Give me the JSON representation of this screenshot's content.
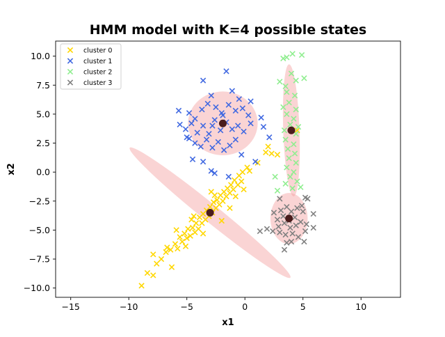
{
  "chart_data": {
    "type": "scatter",
    "title": "HMM model with K=4 possible states",
    "xlabel": "x1",
    "ylabel": "x2",
    "xlim": [
      -16.3,
      13.4
    ],
    "ylim": [
      -10.8,
      11.3
    ],
    "xticks": [
      -15,
      -10,
      -5,
      0,
      5,
      10
    ],
    "yticks": [
      -10.0,
      -7.5,
      -5.0,
      -2.5,
      0.0,
      2.5,
      5.0,
      7.5,
      10.0
    ],
    "xtick_labels": [
      "−15",
      "−10",
      "−5",
      "0",
      "5",
      "10"
    ],
    "ytick_labels": [
      "−10.0",
      "−7.5",
      "−5.0",
      "−2.5",
      "0.0",
      "2.5",
      "5.0",
      "7.5",
      "10.0"
    ],
    "legend_position": "top-left",
    "marker": "x",
    "series": [
      {
        "name": "cluster 0",
        "color": "#ffd700",
        "points": [
          [
            -8.9,
            -9.8
          ],
          [
            -8.4,
            -8.7
          ],
          [
            -7.9,
            -8.9
          ],
          [
            -7.6,
            -7.9
          ],
          [
            -7.9,
            -7.1
          ],
          [
            -7.2,
            -7.5
          ],
          [
            -6.7,
            -6.5
          ],
          [
            -6.3,
            -8.2
          ],
          [
            -6.4,
            -6.7
          ],
          [
            -6.0,
            -6.2
          ],
          [
            -5.8,
            -6.6
          ],
          [
            -5.6,
            -5.6
          ],
          [
            -5.4,
            -6.0
          ],
          [
            -5.2,
            -5.3
          ],
          [
            -5.0,
            -5.7
          ],
          [
            -4.9,
            -4.9
          ],
          [
            -4.7,
            -5.5
          ],
          [
            -4.5,
            -4.8
          ],
          [
            -4.3,
            -5.2
          ],
          [
            -4.2,
            -4.4
          ],
          [
            -4.0,
            -4.9
          ],
          [
            -3.9,
            -3.9
          ],
          [
            -3.7,
            -4.4
          ],
          [
            -3.6,
            -3.6
          ],
          [
            -3.4,
            -4.1
          ],
          [
            -3.3,
            -3.3
          ],
          [
            -3.1,
            -3.8
          ],
          [
            -3.0,
            -3.0
          ],
          [
            -2.8,
            -3.5
          ],
          [
            -2.7,
            -2.6
          ],
          [
            -2.5,
            -3.1
          ],
          [
            -2.4,
            -2.4
          ],
          [
            -2.2,
            -2.8
          ],
          [
            -2.1,
            -2.0
          ],
          [
            -1.9,
            -2.5
          ],
          [
            -1.8,
            -1.7
          ],
          [
            -1.6,
            -2.1
          ],
          [
            -1.5,
            -1.4
          ],
          [
            -1.3,
            -1.8
          ],
          [
            -1.2,
            -1.1
          ],
          [
            -1.0,
            -1.5
          ],
          [
            -0.9,
            -0.7
          ],
          [
            -0.6,
            -1.1
          ],
          [
            -0.5,
            -0.3
          ],
          [
            -0.3,
            -0.8
          ],
          [
            -0.2,
            0.0
          ],
          [
            0.2,
            0.4
          ],
          [
            0.4,
            0.1
          ],
          [
            -2.9,
            -1.7
          ],
          [
            -4.4,
            -3.8
          ],
          [
            -5.9,
            -5.0
          ],
          [
            -3.6,
            -5.3
          ],
          [
            -2.0,
            -4.2
          ],
          [
            -1.3,
            -3.1
          ],
          [
            -0.8,
            -2.1
          ],
          [
            -0.1,
            -1.5
          ],
          [
            -6.8,
            -6.9
          ],
          [
            -5.1,
            -6.4
          ],
          [
            -4.6,
            -4.1
          ],
          [
            -2.6,
            -2.0
          ],
          [
            2.0,
            2.2
          ],
          [
            2.3,
            1.6
          ],
          [
            2.8,
            1.5
          ],
          [
            1.8,
            1.7
          ],
          [
            1.1,
            0.8
          ],
          [
            4.5,
            3.6
          ]
        ]
      },
      {
        "name": "cluster 1",
        "color": "#4169e1",
        "points": [
          [
            -3.6,
            7.9
          ],
          [
            -1.6,
            8.7
          ],
          [
            -2.9,
            6.6
          ],
          [
            -1.1,
            7.0
          ],
          [
            -0.5,
            6.3
          ],
          [
            0.5,
            6.1
          ],
          [
            -5.7,
            5.3
          ],
          [
            -4.8,
            5.1
          ],
          [
            -4.3,
            4.6
          ],
          [
            -3.7,
            5.4
          ],
          [
            -3.2,
            5.9
          ],
          [
            -2.5,
            5.6
          ],
          [
            -2.0,
            5.1
          ],
          [
            -1.4,
            5.8
          ],
          [
            -0.8,
            5.3
          ],
          [
            -0.2,
            5.5
          ],
          [
            0.3,
            4.9
          ],
          [
            -5.6,
            4.1
          ],
          [
            -5.1,
            3.7
          ],
          [
            -4.6,
            4.2
          ],
          [
            -4.1,
            3.4
          ],
          [
            -3.6,
            4.0
          ],
          [
            -3.1,
            3.3
          ],
          [
            -2.6,
            4.5
          ],
          [
            -2.1,
            3.6
          ],
          [
            -1.6,
            4.3
          ],
          [
            -1.1,
            3.7
          ],
          [
            -0.6,
            4.0
          ],
          [
            -0.1,
            3.5
          ],
          [
            0.5,
            4.2
          ],
          [
            -4.8,
            2.9
          ],
          [
            -4.3,
            2.5
          ],
          [
            -3.8,
            2.2
          ],
          [
            -3.3,
            2.8
          ],
          [
            -2.8,
            2.1
          ],
          [
            -2.3,
            2.6
          ],
          [
            -1.8,
            1.9
          ],
          [
            -1.3,
            2.3
          ],
          [
            -0.8,
            2.8
          ],
          [
            -0.3,
            1.5
          ],
          [
            -4.5,
            1.1
          ],
          [
            -3.6,
            0.9
          ],
          [
            -2.9,
            0.1
          ],
          [
            -2.6,
            -0.1
          ],
          [
            -1.4,
            -0.4
          ],
          [
            1.4,
            4.7
          ],
          [
            1.6,
            3.9
          ],
          [
            2.1,
            3.0
          ],
          [
            0.9,
            0.9
          ],
          [
            -5.0,
            3.0
          ],
          [
            -1.9,
            4.9
          ],
          [
            -2.8,
            4.0
          ]
        ]
      },
      {
        "name": "cluster 2",
        "color": "#90ee90",
        "points": [
          [
            3.3,
            9.8
          ],
          [
            3.6,
            9.9
          ],
          [
            4.1,
            10.2
          ],
          [
            4.9,
            10.1
          ],
          [
            3.0,
            7.8
          ],
          [
            3.5,
            7.4
          ],
          [
            4.0,
            8.5
          ],
          [
            4.4,
            7.9
          ],
          [
            5.1,
            8.1
          ],
          [
            3.6,
            6.9
          ],
          [
            4.3,
            6.6
          ],
          [
            3.8,
            6.0
          ],
          [
            4.4,
            5.4
          ],
          [
            3.6,
            5.0
          ],
          [
            4.2,
            4.6
          ],
          [
            3.9,
            4.1
          ],
          [
            3.4,
            3.6
          ],
          [
            4.4,
            3.3
          ],
          [
            3.5,
            2.8
          ],
          [
            4.2,
            2.4
          ],
          [
            3.7,
            2.0
          ],
          [
            4.3,
            1.6
          ],
          [
            3.8,
            1.2
          ],
          [
            4.4,
            0.8
          ],
          [
            3.6,
            0.4
          ],
          [
            4.2,
            0.0
          ],
          [
            3.9,
            -0.4
          ],
          [
            4.5,
            -0.8
          ],
          [
            3.5,
            -1.0
          ],
          [
            4.1,
            -1.4
          ],
          [
            4.8,
            -1.3
          ],
          [
            2.6,
            -0.4
          ],
          [
            2.8,
            -1.6
          ],
          [
            4.6,
            3.9
          ],
          [
            3.3,
            5.6
          ]
        ]
      },
      {
        "name": "cluster 3",
        "color": "#808080",
        "points": [
          [
            3.0,
            -2.3
          ],
          [
            5.2,
            -2.2
          ],
          [
            5.4,
            -2.3
          ],
          [
            4.9,
            -2.9
          ],
          [
            5.9,
            -3.6
          ],
          [
            2.5,
            -3.5
          ],
          [
            3.1,
            -3.3
          ],
          [
            3.6,
            -3.0
          ],
          [
            4.0,
            -3.4
          ],
          [
            4.5,
            -3.1
          ],
          [
            5.0,
            -3.4
          ],
          [
            2.8,
            -4.1
          ],
          [
            3.3,
            -3.8
          ],
          [
            3.8,
            -4.2
          ],
          [
            4.3,
            -3.9
          ],
          [
            4.8,
            -4.3
          ],
          [
            2.9,
            -4.7
          ],
          [
            3.4,
            -4.4
          ],
          [
            3.9,
            -4.8
          ],
          [
            4.4,
            -4.6
          ],
          [
            5.3,
            -4.5
          ],
          [
            5.9,
            -4.8
          ],
          [
            1.9,
            -4.9
          ],
          [
            2.4,
            -5.1
          ],
          [
            3.0,
            -5.2
          ],
          [
            3.5,
            -5.4
          ],
          [
            4.1,
            -5.3
          ],
          [
            4.6,
            -5.6
          ],
          [
            5.2,
            -5.1
          ],
          [
            5.1,
            -6.0
          ],
          [
            4.0,
            -6.0
          ],
          [
            3.6,
            -6.1
          ],
          [
            3.4,
            -6.7
          ],
          [
            1.3,
            -5.1
          ]
        ]
      }
    ],
    "states": [
      {
        "mean": [
          -1.9,
          4.2
        ],
        "shape": "circle",
        "rx": 3.0,
        "ry": 2.75,
        "angle": 0
      },
      {
        "mean": [
          -3.0,
          -3.5
        ],
        "shape": "elongated",
        "rx": 8.9,
        "ry": 0.75,
        "angle": 39
      },
      {
        "mean": [
          4.0,
          3.6
        ],
        "shape": "elongated",
        "rx": 5.7,
        "ry": 0.7,
        "angle": 88
      },
      {
        "mean": [
          3.8,
          -4.0
        ],
        "shape": "circle",
        "rx": 1.6,
        "ry": 2.2,
        "angle": 0
      }
    ],
    "state_fill_color": "#f4a0a0",
    "mean_color": "#4a1c1c"
  }
}
